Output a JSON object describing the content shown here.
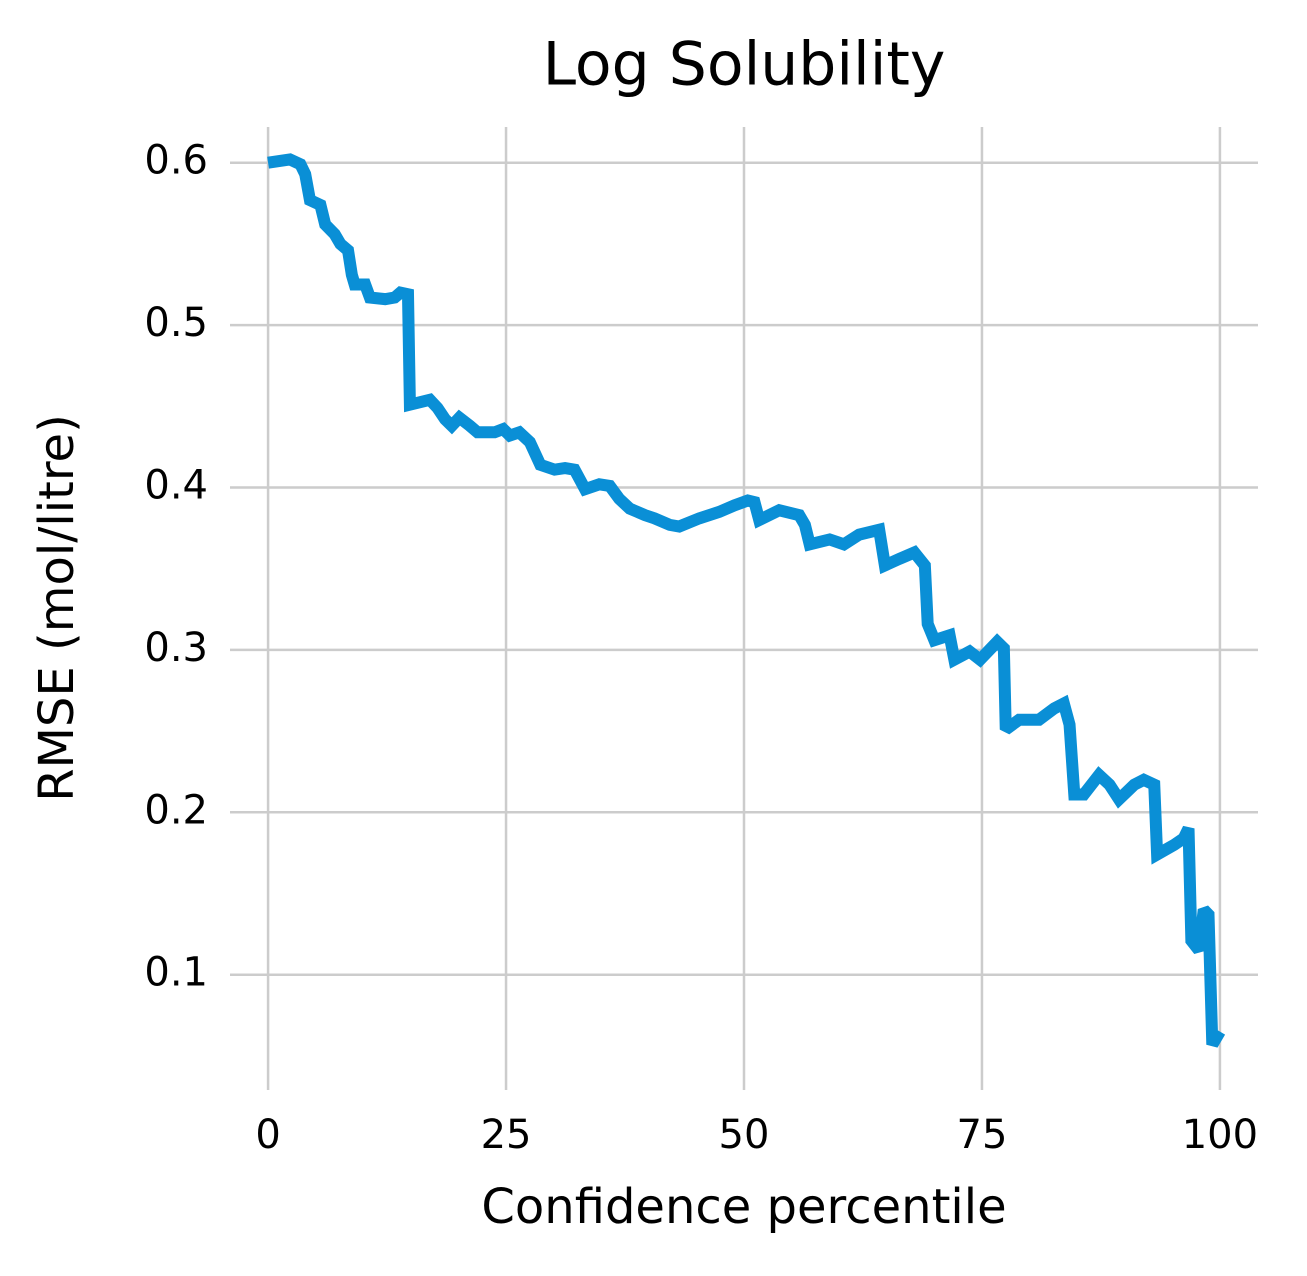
{
  "chart_data": {
    "type": "line",
    "title": "Log Solubility",
    "x_label": "Confidence percentile",
    "y_label": "RMSE (mol/litre)",
    "x": [
      0,
      2.3,
      3.4,
      3.9,
      4.4,
      5.5,
      6.0,
      7.0,
      7.6,
      8.4,
      8.8,
      9.1,
      10.2,
      10.7,
      12.3,
      13.3,
      13.9,
      14.7,
      14.9,
      17.0,
      17.8,
      18.6,
      19.3,
      20.1,
      21.2,
      22.0,
      23.8,
      24.7,
      25.4,
      26.4,
      27.5,
      28.6,
      30.1,
      31.2,
      32.2,
      33.3,
      34.8,
      35.9,
      36.9,
      38.0,
      39.6,
      40.6,
      42.2,
      43.2,
      45.3,
      47.4,
      49.0,
      50.4,
      51.1,
      51.6,
      53.7,
      55.8,
      56.4,
      56.9,
      59.0,
      60.5,
      62.1,
      64.2,
      64.8,
      66.3,
      67.9,
      69.0,
      69.3,
      70.0,
      71.6,
      72.1,
      73.7,
      74.8,
      76.6,
      77.3,
      77.5,
      78.9,
      81.0,
      82.6,
      83.6,
      84.2,
      84.7,
      85.7,
      87.3,
      88.4,
      89.4,
      91.0,
      92.0,
      93.1,
      93.4,
      95.2,
      96.2,
      96.7,
      97.0,
      97.8,
      98.3,
      98.8,
      99.2,
      100
    ],
    "series": [
      {
        "name": "RMSE",
        "color": "#0a8fd6",
        "values": [
          0.6,
          0.602,
          0.599,
          0.593,
          0.577,
          0.574,
          0.562,
          0.556,
          0.55,
          0.546,
          0.531,
          0.525,
          0.525,
          0.517,
          0.516,
          0.517,
          0.52,
          0.519,
          0.451,
          0.454,
          0.449,
          0.442,
          0.438,
          0.443,
          0.438,
          0.434,
          0.434,
          0.436,
          0.432,
          0.434,
          0.428,
          0.414,
          0.411,
          0.412,
          0.411,
          0.399,
          0.402,
          0.401,
          0.393,
          0.387,
          0.383,
          0.381,
          0.377,
          0.376,
          0.381,
          0.385,
          0.389,
          0.392,
          0.391,
          0.38,
          0.386,
          0.383,
          0.377,
          0.365,
          0.368,
          0.365,
          0.371,
          0.374,
          0.352,
          0.356,
          0.36,
          0.352,
          0.316,
          0.306,
          0.309,
          0.294,
          0.299,
          0.294,
          0.305,
          0.301,
          0.251,
          0.257,
          0.257,
          0.264,
          0.267,
          0.254,
          0.211,
          0.211,
          0.223,
          0.217,
          0.208,
          0.217,
          0.22,
          0.217,
          0.174,
          0.18,
          0.184,
          0.19,
          0.121,
          0.115,
          0.14,
          0.137,
          0.057,
          0.065
        ]
      }
    ],
    "xlim": [
      -4,
      104
    ],
    "ylim": [
      0.029,
      0.622
    ],
    "xticks": [
      0,
      25,
      50,
      75,
      100
    ],
    "yticks": [
      0.1,
      0.2,
      0.3,
      0.4,
      0.5,
      0.6
    ],
    "grid": true
  }
}
